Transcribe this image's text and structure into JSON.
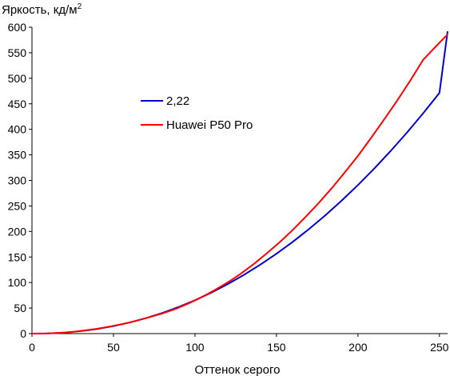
{
  "chart_data": {
    "type": "line",
    "ylabel": "Яркость, кд/м",
    "ylabel_sup": "2",
    "xlabel": "Оттенок серого",
    "xlim": [
      0,
      255
    ],
    "ylim": [
      0,
      600
    ],
    "x_ticks": [
      0,
      50,
      100,
      150,
      200,
      250
    ],
    "y_ticks": [
      0,
      50,
      100,
      150,
      200,
      250,
      300,
      350,
      400,
      450,
      500,
      550,
      600
    ],
    "grid": false,
    "legend_position": "center-left",
    "series": [
      {
        "name": "2,22",
        "color": "#0000cc",
        "x": [
          0,
          10,
          20,
          30,
          40,
          50,
          60,
          70,
          80,
          90,
          100,
          110,
          120,
          130,
          140,
          150,
          160,
          170,
          180,
          190,
          200,
          210,
          220,
          230,
          240,
          250,
          255
        ],
        "y": [
          0,
          0.4,
          2,
          4.8,
          9,
          14.7,
          21.8,
          30.4,
          40.5,
          52.1,
          65.3,
          80.2,
          96.7,
          114.9,
          134.8,
          156.4,
          179.7,
          204.8,
          231.7,
          260.4,
          290.9,
          323.2,
          357.4,
          393.4,
          431.4,
          471.3,
          592
        ]
      },
      {
        "name": "Huawei P50 Pro",
        "color": "#ff0000",
        "x": [
          0,
          8,
          16,
          24,
          32,
          40,
          48,
          56,
          64,
          72,
          80,
          88,
          96,
          104,
          112,
          120,
          128,
          136,
          144,
          152,
          160,
          168,
          176,
          184,
          192,
          200,
          208,
          216,
          224,
          232,
          240,
          248,
          255
        ],
        "y": [
          0,
          0.2,
          1.2,
          3,
          6,
          9.5,
          14,
          19,
          25,
          32,
          39.5,
          48,
          59,
          71,
          85,
          100,
          117,
          136,
          157,
          179,
          203,
          229,
          256,
          285,
          316,
          348,
          383,
          419,
          456,
          495,
          536,
          563,
          586
        ]
      }
    ]
  }
}
